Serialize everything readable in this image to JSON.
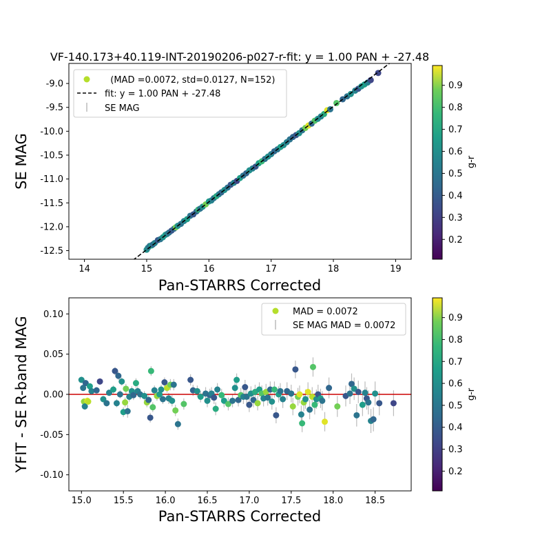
{
  "colors": {
    "fit_line": "#000000",
    "zero_line": "#cc0000",
    "errorbar": "#bbbbbb",
    "legend_marker": "#b5de2b"
  },
  "colorbar": {
    "label": "g-r",
    "ticks": [
      "0.2",
      "0.3",
      "0.4",
      "0.5",
      "0.6",
      "0.7",
      "0.8",
      "0.9"
    ],
    "tick_values": [
      0.2,
      0.3,
      0.4,
      0.5,
      0.6,
      0.7,
      0.8,
      0.9
    ],
    "range": [
      0.11,
      0.99
    ],
    "colormap": "viridis"
  },
  "chart_data": [
    {
      "type": "scatter",
      "title": "VF-140.173+40.119-INT-20190206-p027-r-fit: y = 1.00 PAN + -27.48",
      "xlabel": "Pan-STARRS Corrected",
      "ylabel": "SE MAG",
      "xlim": [
        13.75,
        19.25
      ],
      "ylim": [
        -12.68,
        -8.58
      ],
      "x_ticks": [
        "14",
        "15",
        "16",
        "17",
        "18",
        "19"
      ],
      "x_tick_values": [
        14,
        15,
        16,
        17,
        18,
        19
      ],
      "y_ticks": [
        "-9.0",
        "-9.5",
        "-10.0",
        "-10.5",
        "-11.0",
        "-11.5",
        "-12.0",
        "-12.5"
      ],
      "y_tick_values": [
        -9.0,
        -9.5,
        -10.0,
        -10.5,
        -11.0,
        -11.5,
        -12.0,
        -12.5
      ],
      "fit": {
        "slope": 1.0,
        "intercept": -27.48
      },
      "legend": {
        "placement": "upper-left",
        "entries": [
          "  (MAD =0.0072, std=0.0127, N=152)",
          "fit: y = 1.00 PAN + -27.48",
          "SE MAG"
        ]
      },
      "points": [
        [
          15.0,
          -12.48,
          0.55
        ],
        [
          15.02,
          -12.44,
          0.5
        ],
        [
          15.05,
          -12.4,
          0.45
        ],
        [
          15.08,
          -12.39,
          0.6
        ],
        [
          15.1,
          -12.37,
          0.4
        ],
        [
          15.13,
          -12.34,
          0.5
        ],
        [
          15.18,
          -12.28,
          0.35
        ],
        [
          15.22,
          -12.26,
          0.45
        ],
        [
          15.26,
          -12.22,
          0.55
        ],
        [
          15.3,
          -12.17,
          0.6
        ],
        [
          15.33,
          -12.15,
          0.5
        ],
        [
          15.36,
          -12.12,
          0.45
        ],
        [
          15.4,
          -12.08,
          0.35
        ],
        [
          15.44,
          -12.04,
          0.4
        ],
        [
          15.47,
          -12.01,
          0.8
        ],
        [
          15.5,
          -11.98,
          0.55
        ],
        [
          15.55,
          -11.94,
          0.45
        ],
        [
          15.6,
          -11.88,
          0.5
        ],
        [
          15.65,
          -11.84,
          0.6
        ],
        [
          15.7,
          -11.77,
          0.45
        ],
        [
          15.75,
          -11.74,
          0.35
        ],
        [
          15.8,
          -11.68,
          0.4
        ],
        [
          15.83,
          -11.64,
          0.7
        ],
        [
          15.86,
          -11.62,
          0.45
        ],
        [
          15.9,
          -11.58,
          0.55
        ],
        [
          15.95,
          -11.53,
          0.8
        ],
        [
          16.0,
          -11.47,
          0.6
        ],
        [
          16.04,
          -11.45,
          0.5
        ],
        [
          16.08,
          -11.4,
          0.45
        ],
        [
          16.12,
          -11.36,
          0.65
        ],
        [
          16.16,
          -11.32,
          0.5
        ],
        [
          16.2,
          -11.28,
          0.4
        ],
        [
          16.25,
          -11.23,
          0.55
        ],
        [
          16.3,
          -11.18,
          0.45
        ],
        [
          16.35,
          -11.12,
          0.35
        ],
        [
          16.4,
          -11.08,
          0.5
        ],
        [
          16.45,
          -11.04,
          0.3
        ],
        [
          16.5,
          -10.98,
          0.6
        ],
        [
          16.55,
          -10.93,
          0.45
        ],
        [
          16.6,
          -10.88,
          0.4
        ],
        [
          16.65,
          -10.82,
          0.55
        ],
        [
          16.7,
          -10.78,
          0.5
        ],
        [
          16.75,
          -10.74,
          0.35
        ],
        [
          16.8,
          -10.67,
          0.6
        ],
        [
          16.85,
          -10.63,
          0.7
        ],
        [
          16.9,
          -10.58,
          0.45
        ],
        [
          16.95,
          -10.53,
          0.55
        ],
        [
          17.0,
          -10.48,
          0.5
        ],
        [
          17.05,
          -10.42,
          0.4
        ],
        [
          17.1,
          -10.38,
          0.45
        ],
        [
          17.15,
          -10.33,
          0.6
        ],
        [
          17.2,
          -10.29,
          0.55
        ],
        [
          17.25,
          -10.23,
          0.5
        ],
        [
          17.3,
          -10.17,
          0.45
        ],
        [
          17.35,
          -10.12,
          0.4
        ],
        [
          17.4,
          -10.08,
          0.35
        ],
        [
          17.45,
          -10.04,
          0.55
        ],
        [
          17.5,
          -9.98,
          0.45
        ],
        [
          17.55,
          -9.93,
          0.8
        ],
        [
          17.6,
          -9.88,
          0.95
        ],
        [
          17.65,
          -9.84,
          0.4
        ],
        [
          17.7,
          -9.78,
          0.75
        ],
        [
          17.75,
          -9.74,
          0.55
        ],
        [
          17.8,
          -9.69,
          0.5
        ],
        [
          17.85,
          -9.64,
          0.65
        ],
        [
          17.9,
          -9.56,
          0.95
        ],
        [
          17.95,
          -9.54,
          0.45
        ],
        [
          18.05,
          -9.41,
          0.75
        ],
        [
          18.15,
          -9.33,
          0.4
        ],
        [
          18.22,
          -9.27,
          0.45
        ],
        [
          18.28,
          -9.22,
          0.55
        ],
        [
          18.35,
          -9.15,
          0.5
        ],
        [
          18.4,
          -9.11,
          0.35
        ],
        [
          18.45,
          -9.06,
          0.55
        ],
        [
          18.5,
          -9.02,
          0.6
        ],
        [
          18.55,
          -8.98,
          0.5
        ],
        [
          18.6,
          -8.93,
          0.3
        ],
        [
          18.72,
          -8.78,
          0.3
        ]
      ]
    },
    {
      "type": "scatter",
      "xlabel": "Pan-STARRS Corrected",
      "ylabel": "YFIT - SE R-band MAG",
      "xlim": [
        14.85,
        18.93
      ],
      "ylim": [
        -0.12,
        0.12
      ],
      "x_ticks": [
        "15.0",
        "15.5",
        "16.0",
        "16.5",
        "17.0",
        "17.5",
        "18.0",
        "18.5"
      ],
      "x_tick_values": [
        15.0,
        15.5,
        16.0,
        16.5,
        17.0,
        17.5,
        18.0,
        18.5
      ],
      "y_ticks": [
        "0.10",
        "0.05",
        "0.00",
        "-0.05",
        "-0.10"
      ],
      "y_tick_values": [
        0.1,
        0.05,
        0.0,
        -0.05,
        -0.1
      ],
      "zero_line": 0.0,
      "legend": {
        "placement": "upper-right",
        "entries": [
          "MAD = 0.0072",
          "SE MAG MAD = 0.0072"
        ]
      },
      "points": [
        [
          15.0,
          0.018,
          0.55,
          0.004
        ],
        [
          15.02,
          0.008,
          0.45,
          0.004
        ],
        [
          15.03,
          -0.009,
          0.85,
          0.004
        ],
        [
          15.04,
          -0.015,
          0.5,
          0.004
        ],
        [
          15.05,
          0.014,
          0.4,
          0.004
        ],
        [
          15.07,
          -0.008,
          0.95,
          0.004
        ],
        [
          15.08,
          -0.009,
          0.9,
          0.004
        ],
        [
          15.1,
          0.01,
          0.6,
          0.004
        ],
        [
          15.12,
          0.004,
          0.5,
          0.004
        ],
        [
          15.18,
          0.005,
          0.4,
          0.004
        ],
        [
          15.22,
          0.016,
          0.3,
          0.004
        ],
        [
          15.26,
          -0.006,
          0.55,
          0.004
        ],
        [
          15.3,
          -0.011,
          0.45,
          0.004
        ],
        [
          15.33,
          0.002,
          0.5,
          0.004
        ],
        [
          15.38,
          0.006,
          0.6,
          0.005
        ],
        [
          15.4,
          0.029,
          0.35,
          0.005
        ],
        [
          15.42,
          -0.011,
          0.5,
          0.005
        ],
        [
          15.44,
          0.023,
          0.4,
          0.005
        ],
        [
          15.46,
          0.0,
          0.45,
          0.005
        ],
        [
          15.48,
          0.016,
          0.55,
          0.005
        ],
        [
          15.5,
          -0.022,
          0.6,
          0.006
        ],
        [
          15.52,
          -0.01,
          0.85,
          0.006
        ],
        [
          15.53,
          0.007,
          0.8,
          0.006
        ],
        [
          15.55,
          -0.021,
          0.45,
          0.008
        ],
        [
          15.57,
          -0.003,
          0.5,
          0.006
        ],
        [
          15.6,
          0.004,
          0.55,
          0.006
        ],
        [
          15.62,
          -0.001,
          0.4,
          0.006
        ],
        [
          15.65,
          0.014,
          0.65,
          0.006
        ],
        [
          15.67,
          0.004,
          0.5,
          0.006
        ],
        [
          15.7,
          0.0,
          0.45,
          0.006
        ],
        [
          15.75,
          -0.002,
          0.55,
          0.006
        ],
        [
          15.78,
          -0.01,
          0.85,
          0.006
        ],
        [
          15.8,
          -0.007,
          0.4,
          0.006
        ],
        [
          15.82,
          -0.029,
          0.35,
          0.006
        ],
        [
          15.83,
          0.029,
          0.7,
          0.006
        ],
        [
          15.85,
          -0.016,
          0.75,
          0.006
        ],
        [
          15.87,
          0.005,
          0.5,
          0.006
        ],
        [
          15.9,
          -0.002,
          0.85,
          0.006
        ],
        [
          15.93,
          0.0,
          0.6,
          0.006
        ],
        [
          15.95,
          0.006,
          0.55,
          0.006
        ],
        [
          15.97,
          -0.006,
          0.45,
          0.006
        ],
        [
          15.99,
          0.015,
          0.35,
          0.006
        ],
        [
          16.02,
          0.008,
          0.9,
          0.006
        ],
        [
          16.04,
          -0.005,
          0.5,
          0.007
        ],
        [
          16.06,
          0.012,
          0.8,
          0.007
        ],
        [
          16.08,
          -0.008,
          0.55,
          0.007
        ],
        [
          16.1,
          0.012,
          0.45,
          0.007
        ],
        [
          16.12,
          -0.02,
          0.8,
          0.007
        ],
        [
          16.15,
          -0.037,
          0.45,
          0.007
        ],
        [
          16.22,
          -0.012,
          0.75,
          0.007
        ],
        [
          16.3,
          0.018,
          0.35,
          0.007
        ],
        [
          16.33,
          0.005,
          0.4,
          0.007
        ],
        [
          16.38,
          0.004,
          0.55,
          0.007
        ],
        [
          16.42,
          -0.003,
          0.6,
          0.007
        ],
        [
          16.48,
          0.001,
          0.45,
          0.008
        ],
        [
          16.5,
          -0.008,
          0.55,
          0.008
        ],
        [
          16.53,
          -0.001,
          0.4,
          0.008
        ],
        [
          16.55,
          0.001,
          0.5,
          0.008
        ],
        [
          16.58,
          -0.004,
          0.35,
          0.008
        ],
        [
          16.6,
          -0.018,
          0.65,
          0.008
        ],
        [
          16.62,
          0.006,
          0.5,
          0.008
        ],
        [
          16.67,
          -0.001,
          0.7,
          0.008
        ],
        [
          16.7,
          -0.008,
          0.6,
          0.008
        ],
        [
          16.75,
          -0.012,
          0.75,
          0.008
        ],
        [
          16.8,
          -0.008,
          0.45,
          0.008
        ],
        [
          16.83,
          0.008,
          0.55,
          0.008
        ],
        [
          16.85,
          0.018,
          0.6,
          0.008
        ],
        [
          16.87,
          -0.007,
          0.4,
          0.008
        ],
        [
          16.9,
          -0.001,
          0.75,
          0.009
        ],
        [
          16.93,
          -0.003,
          0.5,
          0.009
        ],
        [
          16.95,
          0.009,
          0.35,
          0.009
        ],
        [
          16.97,
          -0.003,
          0.45,
          0.009
        ],
        [
          17.0,
          -0.013,
          0.35,
          0.009
        ],
        [
          17.02,
          0.001,
          0.55,
          0.009
        ],
        [
          17.05,
          -0.007,
          0.4,
          0.009
        ],
        [
          17.07,
          0.003,
          0.65,
          0.009
        ],
        [
          17.1,
          -0.011,
          0.85,
          0.009
        ],
        [
          17.12,
          0.006,
          0.6,
          0.009
        ],
        [
          17.15,
          0.001,
          0.75,
          0.01
        ],
        [
          17.17,
          -0.005,
          0.5,
          0.01
        ],
        [
          17.2,
          0.003,
          0.85,
          0.01
        ],
        [
          17.22,
          -0.004,
          0.45,
          0.01
        ],
        [
          17.25,
          0.006,
          0.4,
          0.01
        ],
        [
          17.27,
          -0.009,
          0.55,
          0.01
        ],
        [
          17.3,
          0.006,
          0.7,
          0.01
        ],
        [
          17.32,
          -0.026,
          0.35,
          0.01
        ],
        [
          17.35,
          0.0,
          0.6,
          0.01
        ],
        [
          17.37,
          0.004,
          0.45,
          0.01
        ],
        [
          17.4,
          -0.006,
          0.5,
          0.011
        ],
        [
          17.45,
          0.004,
          0.4,
          0.011
        ],
        [
          17.5,
          0.001,
          0.45,
          0.011
        ],
        [
          17.52,
          -0.015,
          0.85,
          0.011
        ],
        [
          17.55,
          0.031,
          0.35,
          0.011
        ],
        [
          17.58,
          -0.003,
          0.8,
          0.011
        ],
        [
          17.6,
          0.0,
          0.95,
          0.011
        ],
        [
          17.62,
          -0.025,
          0.5,
          0.011
        ],
        [
          17.63,
          -0.036,
          0.7,
          0.011
        ],
        [
          17.65,
          -0.01,
          0.85,
          0.011
        ],
        [
          17.67,
          -0.006,
          0.55,
          0.012
        ],
        [
          17.7,
          0.003,
          0.95,
          0.012
        ],
        [
          17.72,
          -0.019,
          0.45,
          0.012
        ],
        [
          17.75,
          -0.003,
          0.9,
          0.012
        ],
        [
          17.76,
          0.034,
          0.75,
          0.012
        ],
        [
          17.78,
          -0.013,
          0.7,
          0.012
        ],
        [
          17.8,
          -0.006,
          0.55,
          0.012
        ],
        [
          17.82,
          0.0,
          0.35,
          0.012
        ],
        [
          17.85,
          -0.005,
          0.6,
          0.012
        ],
        [
          17.87,
          -0.008,
          0.45,
          0.012
        ],
        [
          17.9,
          -0.034,
          0.95,
          0.012
        ],
        [
          17.95,
          0.008,
          0.4,
          0.013
        ],
        [
          18.05,
          -0.015,
          0.8,
          0.013
        ],
        [
          18.15,
          -0.002,
          0.35,
          0.013
        ],
        [
          18.2,
          0.001,
          0.45,
          0.013
        ],
        [
          18.22,
          0.013,
          0.4,
          0.013
        ],
        [
          18.25,
          0.007,
          0.55,
          0.014
        ],
        [
          18.28,
          -0.026,
          0.45,
          0.014
        ],
        [
          18.3,
          0.003,
          0.35,
          0.014
        ],
        [
          18.35,
          -0.013,
          0.6,
          0.014
        ],
        [
          18.38,
          0.002,
          0.5,
          0.014
        ],
        [
          18.4,
          -0.005,
          0.35,
          0.014
        ],
        [
          18.42,
          -0.01,
          0.45,
          0.015
        ],
        [
          18.45,
          -0.033,
          0.5,
          0.015
        ],
        [
          18.48,
          -0.031,
          0.4,
          0.015
        ],
        [
          18.5,
          0.001,
          0.55,
          0.015
        ],
        [
          18.55,
          -0.011,
          0.35,
          0.015
        ],
        [
          18.72,
          -0.011,
          0.3,
          0.016
        ]
      ]
    }
  ]
}
